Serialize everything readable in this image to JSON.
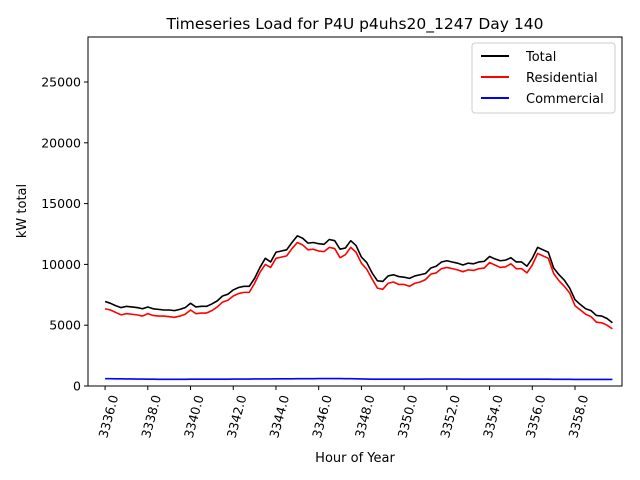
{
  "chart_data": {
    "type": "line",
    "title": "Timeseries Load for P4U p4uhs20_1247  Day 140",
    "xlabel": "Hour of Year",
    "ylabel": "kW total",
    "xlim": [
      3335.2,
      3360.2
    ],
    "ylim": [
      0,
      28700
    ],
    "x_ticks": [
      3336.0,
      3338.0,
      3340.0,
      3342.0,
      3344.0,
      3346.0,
      3348.0,
      3350.0,
      3352.0,
      3354.0,
      3356.0,
      3358.0
    ],
    "x_tick_labels": [
      "3336.0",
      "3338.0",
      "3340.0",
      "3342.0",
      "3344.0",
      "3346.0",
      "3348.0",
      "3350.0",
      "3352.0",
      "3354.0",
      "3356.0",
      "3358.0"
    ],
    "y_ticks": [
      0,
      5000,
      10000,
      15000,
      20000,
      25000
    ],
    "y_tick_labels": [
      "0",
      "5000",
      "10000",
      "15000",
      "20000",
      "25000"
    ],
    "grid": false,
    "legend_position": "top-right",
    "x": [
      3336.0,
      3336.25,
      3336.5,
      3336.75,
      3337.0,
      3337.25,
      3337.5,
      3337.75,
      3338.0,
      3338.25,
      3338.5,
      3338.75,
      3339.0,
      3339.25,
      3339.5,
      3339.75,
      3340.0,
      3340.25,
      3340.5,
      3340.75,
      3341.0,
      3341.25,
      3341.5,
      3341.75,
      3342.0,
      3342.25,
      3342.5,
      3342.75,
      3343.0,
      3343.25,
      3343.5,
      3343.75,
      3344.0,
      3344.25,
      3344.5,
      3344.75,
      3345.0,
      3345.25,
      3345.5,
      3345.75,
      3346.0,
      3346.25,
      3346.5,
      3346.75,
      3347.0,
      3347.25,
      3347.5,
      3347.75,
      3348.0,
      3348.25,
      3348.5,
      3348.75,
      3349.0,
      3349.25,
      3349.5,
      3349.75,
      3350.0,
      3350.25,
      3350.5,
      3350.75,
      3351.0,
      3351.25,
      3351.5,
      3351.75,
      3352.0,
      3352.25,
      3352.5,
      3352.75,
      3353.0,
      3353.25,
      3353.5,
      3353.75,
      3354.0,
      3354.25,
      3354.5,
      3354.75,
      3355.0,
      3355.25,
      3355.5,
      3355.75,
      3356.0,
      3356.25,
      3356.5,
      3356.75,
      3357.0,
      3357.25,
      3357.5,
      3357.75,
      3358.0,
      3358.25,
      3358.5,
      3358.75,
      3359.0,
      3359.25,
      3359.5,
      3359.75
    ],
    "series": [
      {
        "name": "Total",
        "color": "#000000",
        "values": [
          6950,
          6800,
          6600,
          6450,
          6550,
          6500,
          6450,
          6350,
          6500,
          6350,
          6300,
          6250,
          6250,
          6200,
          6300,
          6450,
          6800,
          6500,
          6550,
          6550,
          6750,
          7000,
          7400,
          7550,
          7900,
          8100,
          8200,
          8200,
          8850,
          9750,
          10500,
          10200,
          11000,
          11100,
          11200,
          11800,
          12350,
          12150,
          11750,
          11800,
          11700,
          11650,
          12050,
          11950,
          11250,
          11350,
          11950,
          11550,
          10600,
          10150,
          9300,
          8650,
          8600,
          9050,
          9150,
          9000,
          8950,
          8850,
          9050,
          9150,
          9250,
          9700,
          9850,
          10200,
          10300,
          10200,
          10100,
          9950,
          10100,
          10050,
          10200,
          10250,
          10650,
          10450,
          10300,
          10350,
          10550,
          10200,
          10200,
          9850,
          10500,
          11400,
          11200,
          11000,
          9700,
          9150,
          8700,
          8050,
          7100,
          6700,
          6350,
          6200,
          5800,
          5750,
          5550,
          5200
        ]
      },
      {
        "name": "Residential",
        "color": "#ff0000",
        "values": [
          6350,
          6250,
          6050,
          5850,
          5950,
          5900,
          5850,
          5750,
          5950,
          5800,
          5750,
          5750,
          5700,
          5650,
          5750,
          5900,
          6250,
          5950,
          6000,
          6000,
          6200,
          6500,
          6900,
          7050,
          7400,
          7600,
          7700,
          7700,
          8450,
          9350,
          10000,
          9750,
          10500,
          10600,
          10700,
          11300,
          11800,
          11600,
          11200,
          11250,
          11100,
          11050,
          11400,
          11300,
          10550,
          10800,
          11400,
          11000,
          10100,
          9600,
          8800,
          8050,
          7950,
          8450,
          8550,
          8350,
          8350,
          8200,
          8450,
          8550,
          8750,
          9200,
          9300,
          9650,
          9750,
          9650,
          9550,
          9400,
          9550,
          9500,
          9650,
          9700,
          10150,
          9950,
          9750,
          9800,
          10050,
          9650,
          9650,
          9300,
          9950,
          10900,
          10700,
          10500,
          9250,
          8650,
          8200,
          7650,
          6600,
          6250,
          5900,
          5700,
          5250,
          5200,
          5000,
          4700
        ]
      },
      {
        "name": "Commercial",
        "color": "#0000ff",
        "values": [
          600,
          600,
          590,
          590,
          580,
          580,
          570,
          570,
          560,
          560,
          550,
          550,
          550,
          550,
          550,
          550,
          560,
          560,
          560,
          560,
          560,
          560,
          560,
          560,
          570,
          570,
          570,
          570,
          580,
          580,
          580,
          580,
          590,
          590,
          590,
          590,
          600,
          600,
          600,
          600,
          610,
          610,
          610,
          610,
          610,
          600,
          600,
          590,
          580,
          570,
          560,
          560,
          560,
          560,
          560,
          560,
          560,
          560,
          560,
          560,
          570,
          570,
          570,
          570,
          570,
          570,
          570,
          560,
          560,
          560,
          560,
          560,
          560,
          560,
          560,
          560,
          560,
          560,
          560,
          560,
          560,
          560,
          560,
          560,
          550,
          550,
          550,
          550,
          540,
          540,
          540,
          540,
          540,
          540,
          540,
          540
        ]
      }
    ]
  }
}
